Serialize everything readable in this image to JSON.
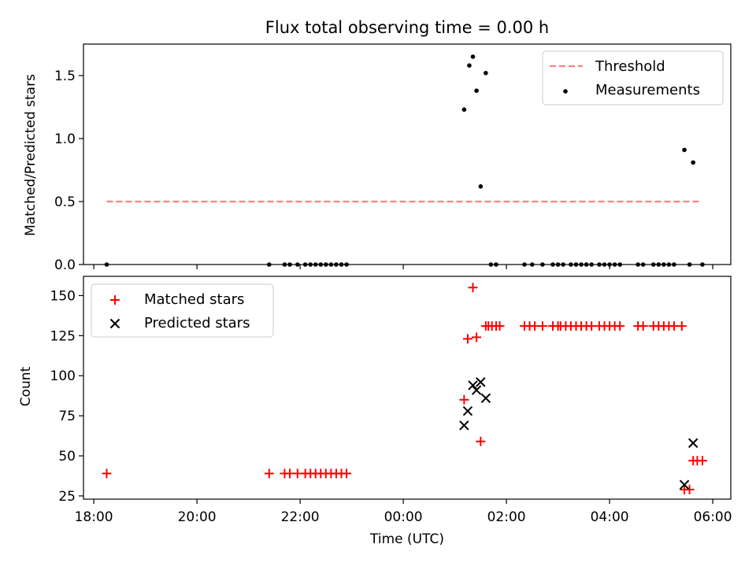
{
  "chart_data": [
    {
      "type": "scatter",
      "title": "Flux total observing time = 0.00 h",
      "xlabel": "",
      "ylabel": "Matched/Predicted stars",
      "xlim": [
        -6.2,
        6.35
      ],
      "ylim": [
        0,
        1.75
      ],
      "yticks": [
        0.0,
        0.5,
        1.0,
        1.5
      ],
      "ytick_labels": [
        "0.0",
        "0.5",
        "1.0",
        "1.5"
      ],
      "legend_position": "top-right",
      "threshold": {
        "name": "Threshold",
        "value": 0.5,
        "x_range": [
          -5.75,
          5.75
        ],
        "color": "#ff7f7f",
        "style": "dashed"
      },
      "series": [
        {
          "name": "Measurements",
          "color": "#000000",
          "marker": "dot",
          "x": [
            -5.75,
            -2.6,
            -2.3,
            -2.2,
            -2.05,
            -1.9,
            -1.8,
            -1.7,
            -1.6,
            -1.5,
            -1.4,
            -1.3,
            -1.2,
            -1.1,
            1.18,
            1.28,
            1.35,
            1.42,
            1.5,
            1.6,
            1.7,
            1.8,
            2.35,
            2.5,
            2.7,
            2.9,
            3.0,
            3.1,
            3.25,
            3.35,
            3.45,
            3.55,
            3.65,
            3.8,
            3.9,
            4.0,
            4.1,
            4.2,
            4.55,
            4.65,
            4.85,
            4.95,
            5.05,
            5.15,
            5.25,
            5.45,
            5.55,
            5.62,
            5.8
          ],
          "y": [
            0,
            0,
            0,
            0,
            0,
            0,
            0,
            0,
            0,
            0,
            0,
            0,
            0,
            0,
            1.23,
            1.58,
            1.65,
            1.38,
            0.62,
            1.52,
            0,
            0,
            0,
            0,
            0,
            0,
            0,
            0,
            0,
            0,
            0,
            0,
            0,
            0,
            0,
            0,
            0,
            0,
            0,
            0,
            0,
            0,
            0,
            0,
            0,
            0.91,
            0,
            0.81,
            0
          ]
        }
      ]
    },
    {
      "type": "scatter",
      "title": "",
      "xlabel": "Time (UTC)",
      "ylabel": "Count",
      "xlim": [
        -6.2,
        6.35
      ],
      "ylim": [
        23,
        162
      ],
      "yticks": [
        25,
        50,
        75,
        100,
        125,
        150
      ],
      "ytick_labels": [
        "25",
        "50",
        "75",
        "100",
        "125",
        "150"
      ],
      "xticks": [
        -6,
        -4,
        -2,
        0,
        2,
        4,
        6
      ],
      "xtick_labels": [
        "18:00",
        "20:00",
        "22:00",
        "00:00",
        "02:00",
        "04:00",
        "06:00"
      ],
      "legend_position": "top-left",
      "series": [
        {
          "name": "Matched stars",
          "color": "#ff0000",
          "marker": "plus",
          "x": [
            -5.75,
            -2.6,
            -2.3,
            -2.2,
            -2.05,
            -1.9,
            -1.8,
            -1.7,
            -1.6,
            -1.5,
            -1.4,
            -1.3,
            -1.2,
            -1.1,
            1.18,
            1.25,
            1.35,
            1.42,
            1.5,
            1.6,
            1.65,
            1.72,
            1.8,
            1.87,
            2.35,
            2.45,
            2.55,
            2.7,
            2.9,
            3.0,
            3.05,
            3.15,
            3.25,
            3.35,
            3.45,
            3.55,
            3.65,
            3.8,
            3.9,
            4.0,
            4.1,
            4.2,
            4.55,
            4.65,
            4.85,
            4.95,
            5.05,
            5.15,
            5.25,
            5.4,
            5.45,
            5.55,
            5.62,
            5.7,
            5.8
          ],
          "y": [
            39,
            39,
            39,
            39,
            39,
            39,
            39,
            39,
            39,
            39,
            39,
            39,
            39,
            39,
            85,
            123,
            155,
            124,
            59,
            131,
            131,
            131,
            131,
            131,
            131,
            131,
            131,
            131,
            131,
            131,
            131,
            131,
            131,
            131,
            131,
            131,
            131,
            131,
            131,
            131,
            131,
            131,
            131,
            131,
            131,
            131,
            131,
            131,
            131,
            131,
            29,
            29,
            47,
            47,
            47
          ]
        },
        {
          "name": "Predicted stars",
          "color": "#000000",
          "marker": "x",
          "x": [
            1.18,
            1.25,
            1.35,
            1.42,
            1.5,
            1.6,
            5.45,
            5.62
          ],
          "y": [
            69,
            78,
            94,
            91,
            96,
            86,
            32,
            58
          ]
        }
      ]
    }
  ]
}
